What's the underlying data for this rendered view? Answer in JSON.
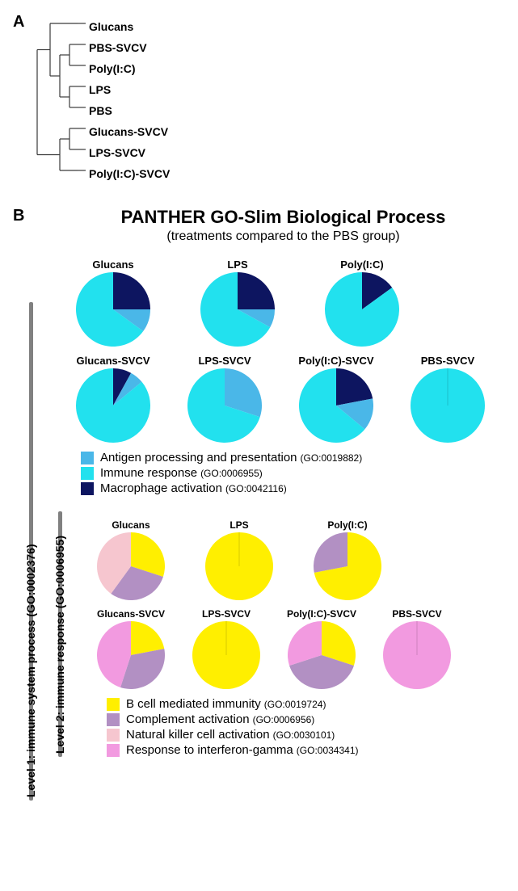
{
  "panelA": {
    "label": "A",
    "rows": [
      {
        "name": "Glucans"
      },
      {
        "name": "PBS-SVCV"
      },
      {
        "name": "Poly(I:C)"
      },
      {
        "name": "LPS"
      },
      {
        "name": "PBS"
      },
      {
        "name": "Glucans-SVCV"
      },
      {
        "name": "LPS-SVCV"
      },
      {
        "name": "Poly(I:C)-SVCV"
      }
    ],
    "heatmap": {
      "n_cols": 220,
      "palette": [
        "#3a62a8",
        "#5e86c0",
        "#8cacd3",
        "#bfd1e4",
        "#e6ecd8",
        "#f6f3cf",
        "#fae7b4",
        "#f6c98a",
        "#ee9f5d",
        "#e2743b",
        "#c94a23"
      ],
      "row_seeds": [
        101,
        202,
        303,
        404,
        505,
        606,
        707,
        808
      ]
    },
    "dendrogram": {
      "stroke": "#3a3a3a",
      "stroke_width": 1.2
    }
  },
  "panelB": {
    "label": "B",
    "title": "PANTHER GO-Slim Biological Process",
    "subtitle": "(treatments compared to the PBS group)",
    "level1": {
      "bar_label": "Level 1: immune system process (GO:0002376)",
      "legend": [
        {
          "color": "#4ab7e8",
          "label": "Antigen processing and presentation",
          "go": "(GO:0019882)"
        },
        {
          "color": "#22e1ee",
          "label": "Immune response",
          "go": "(GO:0006955)"
        },
        {
          "color": "#0d1560",
          "label": "Macrophage activation",
          "go": "(GO:0042116)"
        }
      ],
      "pies_row1": [
        {
          "title": "Glucans",
          "slices": [
            {
              "color": "#0d1560",
              "value": 25
            },
            {
              "color": "#4ab7e8",
              "value": 10
            },
            {
              "color": "#22e1ee",
              "value": 65
            }
          ]
        },
        {
          "title": "LPS",
          "slices": [
            {
              "color": "#0d1560",
              "value": 25
            },
            {
              "color": "#4ab7e8",
              "value": 8
            },
            {
              "color": "#22e1ee",
              "value": 67
            }
          ]
        },
        {
          "title": "Poly(I:C)",
          "slices": [
            {
              "color": "#0d1560",
              "value": 15
            },
            {
              "color": "#22e1ee",
              "value": 85
            }
          ]
        }
      ],
      "pies_row2": [
        {
          "title": "Glucans-SVCV",
          "slices": [
            {
              "color": "#0d1560",
              "value": 8
            },
            {
              "color": "#4ab7e8",
              "value": 6
            },
            {
              "color": "#22e1ee",
              "value": 86
            }
          ]
        },
        {
          "title": "LPS-SVCV",
          "slices": [
            {
              "color": "#4ab7e8",
              "value": 30
            },
            {
              "color": "#22e1ee",
              "value": 70
            }
          ]
        },
        {
          "title": "Poly(I:C)-SVCV",
          "slices": [
            {
              "color": "#0d1560",
              "value": 22
            },
            {
              "color": "#4ab7e8",
              "value": 14
            },
            {
              "color": "#22e1ee",
              "value": 64
            }
          ]
        },
        {
          "title": "PBS-SVCV",
          "slices": [
            {
              "color": "#22e1ee",
              "value": 100
            }
          ]
        }
      ]
    },
    "level2": {
      "bar_label": "Level 2: immune response (GO:0006955)",
      "legend": [
        {
          "color": "#ffef00",
          "label": "B cell mediated immunity",
          "go": "(GO:0019724)"
        },
        {
          "color": "#b290c3",
          "label": "Complement activation",
          "go": "(GO:0006956)"
        },
        {
          "color": "#f6c6cf",
          "label": "Natural killer cell activation",
          "go": "(GO:0030101)"
        },
        {
          "color": "#f29ae0",
          "label": "Response to interferon-gamma",
          "go": "(GO:0034341)"
        }
      ],
      "pies_row1": [
        {
          "title": "Glucans",
          "slices": [
            {
              "color": "#ffef00",
              "value": 30
            },
            {
              "color": "#b290c3",
              "value": 30
            },
            {
              "color": "#f6c6cf",
              "value": 40
            }
          ]
        },
        {
          "title": "LPS",
          "slices": [
            {
              "color": "#ffef00",
              "value": 100
            }
          ]
        },
        {
          "title": "Poly(I:C)",
          "slices": [
            {
              "color": "#ffef00",
              "value": 72
            },
            {
              "color": "#b290c3",
              "value": 28
            }
          ]
        }
      ],
      "pies_row2": [
        {
          "title": "Glucans-SVCV",
          "slices": [
            {
              "color": "#ffef00",
              "value": 22
            },
            {
              "color": "#b290c3",
              "value": 33
            },
            {
              "color": "#f29ae0",
              "value": 45
            }
          ]
        },
        {
          "title": "LPS-SVCV",
          "slices": [
            {
              "color": "#ffef00",
              "value": 100
            }
          ]
        },
        {
          "title": "Poly(I:C)-SVCV",
          "slices": [
            {
              "color": "#ffef00",
              "value": 30
            },
            {
              "color": "#b290c3",
              "value": 40
            },
            {
              "color": "#f29ae0",
              "value": 30
            }
          ]
        },
        {
          "title": "PBS-SVCV",
          "slices": [
            {
              "color": "#f29ae0",
              "value": 100
            }
          ]
        }
      ]
    },
    "pie_radius_large": 46,
    "pie_radius_small": 42
  }
}
